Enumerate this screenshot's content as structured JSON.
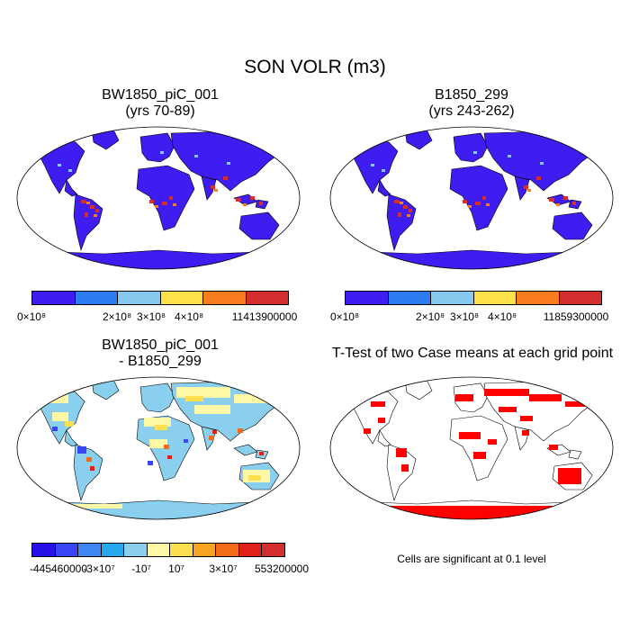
{
  "title": "SON VOLR (m3)",
  "panels": {
    "top_left": {
      "title_line1": "BW1850_piC_001",
      "title_line2": "(yrs 70-89)",
      "colorbar": {
        "colors": [
          "#3f1cf0",
          "#2e7df0",
          "#86c8ee",
          "#fde24a",
          "#f77d1f",
          "#d52e2e"
        ],
        "labels": [
          "0×10⁸",
          "2×10⁸",
          "3×10⁸",
          "4×10⁸",
          "11413900000"
        ]
      }
    },
    "top_right": {
      "title_line1": "B1850_299",
      "title_line2": "(yrs 243-262)",
      "colorbar": {
        "colors": [
          "#3f1cf0",
          "#2e7df0",
          "#86c8ee",
          "#fde24a",
          "#f77d1f",
          "#d52e2e"
        ],
        "labels": [
          "0×10⁸",
          "2×10⁸",
          "3×10⁸",
          "4×10⁸",
          "11859300000"
        ]
      }
    },
    "bottom_left": {
      "title_line1": "BW1850_piC_001",
      "title_line2": "- B1850_299",
      "colorbar": {
        "colors": [
          "#2a10e8",
          "#3845f2",
          "#3f86f2",
          "#27a8ee",
          "#8ad0ee",
          "#fef8a6",
          "#fde04f",
          "#f8a423",
          "#f36b19",
          "#df2118",
          "#d52e2e"
        ],
        "labels": [
          "-445460000",
          "-3×10⁷",
          "-10⁷",
          "10⁷",
          "3×10⁷",
          "553200000"
        ]
      }
    },
    "bottom_right": {
      "title": "T-Test of two Case means at each grid point",
      "note": "Cells are significant at 0.1 level"
    }
  }
}
